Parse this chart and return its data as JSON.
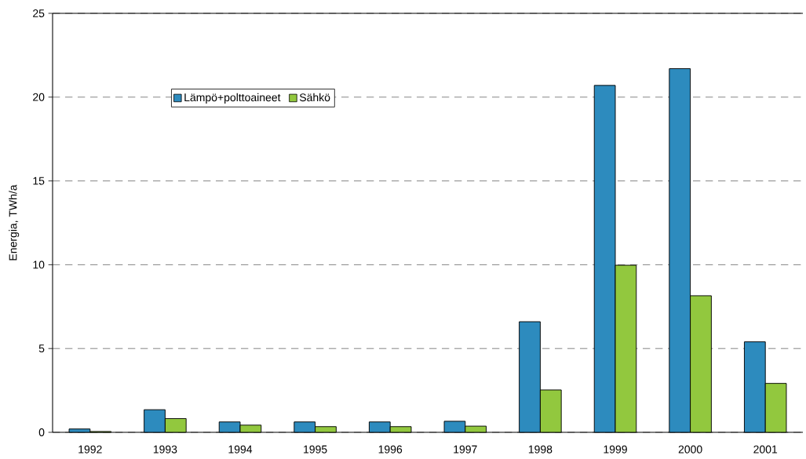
{
  "chart_data": {
    "type": "bar",
    "ylabel": "Energia, TWh/a",
    "categories": [
      "1992",
      "1993",
      "1994",
      "1995",
      "1996",
      "1997",
      "1998",
      "1999",
      "2000",
      "2001"
    ],
    "series": [
      {
        "name": "Lämpö+polttoaineet",
        "color": "#2d8bbe",
        "values": [
          0.2,
          1.35,
          0.62,
          0.62,
          0.62,
          0.66,
          6.6,
          20.7,
          21.7,
          5.4
        ]
      },
      {
        "name": "Sähkö",
        "color": "#92c83e",
        "values": [
          0.05,
          0.82,
          0.43,
          0.34,
          0.34,
          0.37,
          2.53,
          9.97,
          8.15,
          2.92
        ]
      }
    ],
    "ylim": [
      0,
      25
    ],
    "yticks": [
      0,
      5,
      10,
      15,
      20,
      25
    ],
    "grid": "y",
    "legend": "top left"
  }
}
